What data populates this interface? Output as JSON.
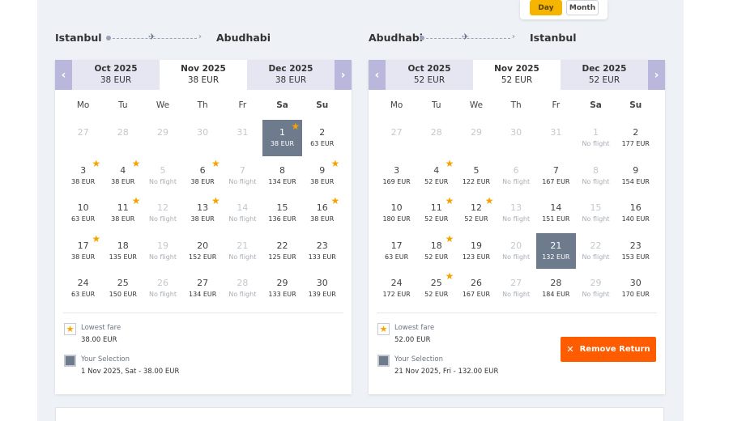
{
  "view_toggle": {
    "day": "Day",
    "month": "Month"
  },
  "outbound": {
    "from": "Istanbul",
    "to": "Abudhabi",
    "months": [
      {
        "name": "Oct 2025",
        "price": "38 EUR"
      },
      {
        "name": "Nov 2025",
        "price": "38 EUR"
      },
      {
        "name": "Dec 2025",
        "price": "38 EUR"
      }
    ],
    "weekdays": [
      "Mo",
      "Tu",
      "We",
      "Th",
      "Fr",
      "Sa",
      "Su"
    ],
    "days": [
      {
        "d": "27",
        "p": "",
        "st": "dim"
      },
      {
        "d": "28",
        "p": "",
        "st": "dim"
      },
      {
        "d": "29",
        "p": "",
        "st": "dim"
      },
      {
        "d": "30",
        "p": "",
        "st": "dim"
      },
      {
        "d": "31",
        "p": "",
        "st": "dim"
      },
      {
        "d": "1",
        "p": "38 EUR",
        "st": "sel",
        "star": true
      },
      {
        "d": "2",
        "p": "63 EUR"
      },
      {
        "d": "3",
        "p": "38 EUR",
        "star": true
      },
      {
        "d": "4",
        "p": "38 EUR",
        "star": true
      },
      {
        "d": "5",
        "p": "No flight",
        "st": "nf"
      },
      {
        "d": "6",
        "p": "38 EUR",
        "star": true
      },
      {
        "d": "7",
        "p": "No flight",
        "st": "nf"
      },
      {
        "d": "8",
        "p": "134 EUR"
      },
      {
        "d": "9",
        "p": "38 EUR",
        "star": true
      },
      {
        "d": "10",
        "p": "63 EUR"
      },
      {
        "d": "11",
        "p": "38 EUR",
        "star": true
      },
      {
        "d": "12",
        "p": "No flight",
        "st": "nf"
      },
      {
        "d": "13",
        "p": "38 EUR",
        "star": true
      },
      {
        "d": "14",
        "p": "No flight",
        "st": "nf"
      },
      {
        "d": "15",
        "p": "136 EUR"
      },
      {
        "d": "16",
        "p": "38 EUR",
        "star": true
      },
      {
        "d": "17",
        "p": "38 EUR",
        "star": true
      },
      {
        "d": "18",
        "p": "135 EUR"
      },
      {
        "d": "19",
        "p": "No flight",
        "st": "nf"
      },
      {
        "d": "20",
        "p": "152 EUR"
      },
      {
        "d": "21",
        "p": "No flight",
        "st": "nf"
      },
      {
        "d": "22",
        "p": "125 EUR"
      },
      {
        "d": "23",
        "p": "133 EUR"
      },
      {
        "d": "24",
        "p": "63 EUR"
      },
      {
        "d": "25",
        "p": "150 EUR"
      },
      {
        "d": "26",
        "p": "No flight",
        "st": "nf"
      },
      {
        "d": "27",
        "p": "134 EUR"
      },
      {
        "d": "28",
        "p": "No flight",
        "st": "nf"
      },
      {
        "d": "29",
        "p": "133 EUR"
      },
      {
        "d": "30",
        "p": "139 EUR"
      }
    ],
    "legend": {
      "lowest_label": "Lowest fare",
      "lowest_value": "38.00 EUR",
      "selection_label": "Your Selection",
      "selection_value": "1 Nov 2025, Sat - 38.00 EUR"
    }
  },
  "return": {
    "from": "Abudhabi",
    "to": "Istanbul",
    "months": [
      {
        "name": "Oct 2025",
        "price": "52 EUR"
      },
      {
        "name": "Nov 2025",
        "price": "52 EUR"
      },
      {
        "name": "Dec 2025",
        "price": "52 EUR"
      }
    ],
    "weekdays": [
      "Mo",
      "Tu",
      "We",
      "Th",
      "Fr",
      "Sa",
      "Su"
    ],
    "days": [
      {
        "d": "27",
        "p": "",
        "st": "dim"
      },
      {
        "d": "28",
        "p": "",
        "st": "dim"
      },
      {
        "d": "29",
        "p": "",
        "st": "dim"
      },
      {
        "d": "30",
        "p": "",
        "st": "dim"
      },
      {
        "d": "31",
        "p": "",
        "st": "dim"
      },
      {
        "d": "1",
        "p": "No flight",
        "st": "nf"
      },
      {
        "d": "2",
        "p": "177 EUR"
      },
      {
        "d": "3",
        "p": "169 EUR"
      },
      {
        "d": "4",
        "p": "52 EUR",
        "star": true
      },
      {
        "d": "5",
        "p": "122 EUR"
      },
      {
        "d": "6",
        "p": "No flight",
        "st": "nf"
      },
      {
        "d": "7",
        "p": "167 EUR"
      },
      {
        "d": "8",
        "p": "No flight",
        "st": "nf"
      },
      {
        "d": "9",
        "p": "154 EUR"
      },
      {
        "d": "10",
        "p": "180 EUR"
      },
      {
        "d": "11",
        "p": "52 EUR",
        "star": true
      },
      {
        "d": "12",
        "p": "52 EUR",
        "star": true
      },
      {
        "d": "13",
        "p": "No flight",
        "st": "nf"
      },
      {
        "d": "14",
        "p": "151 EUR"
      },
      {
        "d": "15",
        "p": "No flight",
        "st": "nf"
      },
      {
        "d": "16",
        "p": "140 EUR"
      },
      {
        "d": "17",
        "p": "63 EUR"
      },
      {
        "d": "18",
        "p": "52 EUR",
        "star": true
      },
      {
        "d": "19",
        "p": "123 EUR"
      },
      {
        "d": "20",
        "p": "No flight",
        "st": "nf"
      },
      {
        "d": "21",
        "p": "132 EUR",
        "st": "sel"
      },
      {
        "d": "22",
        "p": "No flight",
        "st": "nf"
      },
      {
        "d": "23",
        "p": "153 EUR"
      },
      {
        "d": "24",
        "p": "172 EUR"
      },
      {
        "d": "25",
        "p": "52 EUR",
        "star": true
      },
      {
        "d": "26",
        "p": "167 EUR"
      },
      {
        "d": "27",
        "p": "No flight",
        "st": "nf"
      },
      {
        "d": "28",
        "p": "184 EUR"
      },
      {
        "d": "29",
        "p": "No flight",
        "st": "nf"
      },
      {
        "d": "30",
        "p": "170 EUR"
      }
    ],
    "legend": {
      "lowest_label": "Lowest fare",
      "lowest_value": "52.00 EUR",
      "selection_label": "Your Selection",
      "selection_value": "21 Nov 2025, Fri - 132.00 EUR"
    },
    "remove_label": "Remove Return"
  },
  "icons": {
    "prev": "chevron-left-icon",
    "next": "chevron-right-icon",
    "star": "star-icon",
    "plane": "plane-icon",
    "close": "close-icon"
  },
  "colors": {
    "accent_orange": "#ff5c00",
    "star": "#f4a300",
    "selection": "#6d7b8c",
    "month_nav": "#b9b8dc",
    "day_button": "#f4b400"
  }
}
